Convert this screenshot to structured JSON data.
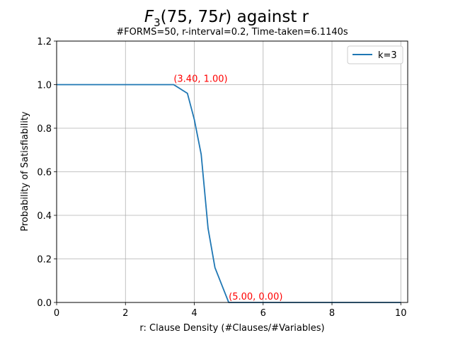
{
  "chart_data": {
    "type": "line",
    "title": {
      "function_symbol": "F",
      "function_subscript": "3",
      "argument_n": "75",
      "argument_n_coeff": "75",
      "argument_var": "r",
      "suffix": "against r"
    },
    "subtitle": "#FORMS=50, r-interval=0.2, Time-taken=6.1140s",
    "xlabel": "r: Clause Density (#Clauses/#Variables)",
    "ylabel": "Probability of Satisfiability",
    "xlim": [
      0,
      10.2
    ],
    "ylim": [
      0,
      1.2
    ],
    "x_ticks": [
      0,
      2,
      4,
      6,
      8,
      10
    ],
    "x_tick_labels": [
      "0",
      "2",
      "4",
      "6",
      "8",
      "10"
    ],
    "y_ticks": [
      0.0,
      0.2,
      0.4,
      0.6,
      0.8,
      1.0,
      1.2
    ],
    "y_tick_labels": [
      "0.0",
      "0.2",
      "0.4",
      "0.6",
      "0.8",
      "1.0",
      "1.2"
    ],
    "grid": true,
    "legend_position": "top-right",
    "series": [
      {
        "name": "k=3",
        "color": "#1f77b4",
        "x": [
          0,
          0.2,
          0.4,
          0.6,
          0.8,
          1.0,
          1.2,
          1.4,
          1.6,
          1.8,
          2.0,
          2.2,
          2.4,
          2.6,
          2.8,
          3.0,
          3.2,
          3.4,
          3.6,
          3.8,
          4.0,
          4.2,
          4.4,
          4.6,
          4.8,
          5.0,
          5.2,
          5.4,
          5.6,
          5.8,
          6.0,
          6.2,
          6.4,
          6.6,
          6.8,
          7.0,
          7.2,
          7.4,
          7.6,
          7.8,
          8.0,
          8.2,
          8.4,
          8.6,
          8.8,
          9.0,
          9.2,
          9.4,
          9.6,
          9.8,
          10.0
        ],
        "y": [
          1.0,
          1.0,
          1.0,
          1.0,
          1.0,
          1.0,
          1.0,
          1.0,
          1.0,
          1.0,
          1.0,
          1.0,
          1.0,
          1.0,
          1.0,
          1.0,
          1.0,
          1.0,
          0.98,
          0.96,
          0.84,
          0.68,
          0.34,
          0.16,
          0.08,
          0.0,
          0.0,
          0.0,
          0.0,
          0.0,
          0.0,
          0.0,
          0.0,
          0.0,
          0.0,
          0.0,
          0.0,
          0.0,
          0.0,
          0.0,
          0.0,
          0.0,
          0.0,
          0.0,
          0.0,
          0.0,
          0.0,
          0.0,
          0.0,
          0.0,
          0.0
        ]
      }
    ],
    "annotations": [
      {
        "text": "(3.40, 1.00)",
        "x": 3.4,
        "y": 1.0,
        "color": "#ff0000"
      },
      {
        "text": "(5.00, 0.00)",
        "x": 5.0,
        "y": 0.0,
        "color": "#ff0000"
      }
    ]
  }
}
